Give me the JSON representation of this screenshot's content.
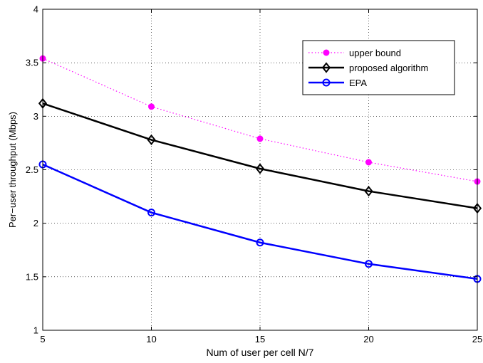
{
  "chart_data": {
    "type": "line",
    "xlabel": "Num of user per cell N/7",
    "ylabel": "Per−user throughput (Mbps)",
    "xlim": [
      5,
      25
    ],
    "ylim": [
      1,
      4
    ],
    "x_ticks": [
      5,
      10,
      15,
      20,
      25
    ],
    "y_ticks": [
      1,
      1.5,
      2,
      2.5,
      3,
      3.5,
      4
    ],
    "x_tick_labels": [
      "5",
      "10",
      "15",
      "20",
      "25"
    ],
    "y_tick_labels": [
      "1",
      "1.5",
      "2",
      "2.5",
      "3",
      "3.5",
      "4"
    ],
    "grid": true,
    "legend_position": "top-right",
    "x": [
      5,
      10,
      15,
      20,
      25
    ],
    "series": [
      {
        "name": "upper bound",
        "values": [
          3.54,
          3.09,
          2.79,
          2.57,
          2.39
        ],
        "color": "#ff00ff",
        "line": "dotted",
        "marker": "filled-circle"
      },
      {
        "name": "proposed algorithm",
        "values": [
          3.12,
          2.78,
          2.51,
          2.3,
          2.14
        ],
        "color": "#000000",
        "line": "solid",
        "marker": "diamond"
      },
      {
        "name": "EPA",
        "values": [
          2.55,
          2.1,
          1.82,
          1.62,
          1.48
        ],
        "color": "#0000ff",
        "line": "solid",
        "marker": "open-circle"
      }
    ]
  }
}
